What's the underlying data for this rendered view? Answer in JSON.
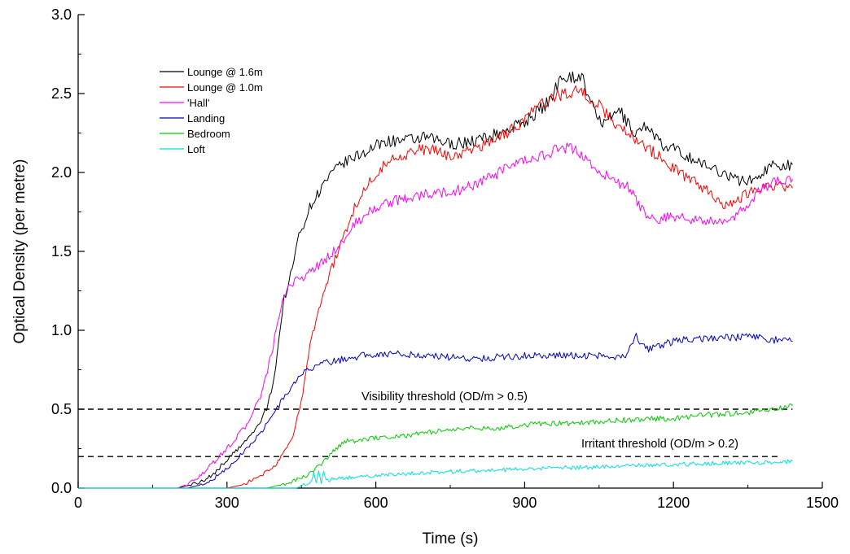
{
  "chart_data": {
    "type": "line",
    "xlabel": "Time (s)",
    "ylabel": "Optical Density (per metre)",
    "xlim": [
      0,
      1500
    ],
    "ylim": [
      0,
      3.0
    ],
    "x_ticks": [
      "0",
      "300",
      "600",
      "900",
      "1200",
      "1500"
    ],
    "y_ticks": [
      "0.0",
      "0.5",
      "1.0",
      "1.5",
      "2.0",
      "2.5",
      "3.0"
    ],
    "grid": false,
    "legend_position": "top-left",
    "series": [
      {
        "name": "Lounge @ 1.6m",
        "color": "#000000",
        "x": [
          0,
          200,
          240,
          270,
          300,
          330,
          360,
          380,
          395,
          405,
          415,
          425,
          435,
          445,
          470,
          500,
          530,
          560,
          590,
          620,
          660,
          700,
          750,
          800,
          850,
          900,
          950,
          975,
          1000,
          1015,
          1030,
          1060,
          1090,
          1120,
          1150,
          1180,
          1200,
          1230,
          1260,
          1300,
          1330,
          1360,
          1400,
          1440
        ],
        "y": [
          0,
          0,
          0.03,
          0.08,
          0.18,
          0.27,
          0.38,
          0.5,
          0.7,
          0.95,
          1.2,
          1.3,
          1.45,
          1.6,
          1.8,
          1.95,
          2.05,
          2.1,
          2.15,
          2.2,
          2.2,
          2.22,
          2.18,
          2.2,
          2.25,
          2.32,
          2.45,
          2.62,
          2.6,
          2.62,
          2.45,
          2.3,
          2.4,
          2.25,
          2.3,
          2.15,
          2.15,
          2.1,
          2.05,
          2.0,
          1.95,
          1.95,
          2.05,
          2.05
        ]
      },
      {
        "name": "Lounge @ 1.0m",
        "color": "#ff0000",
        "x": [
          0,
          300,
          330,
          360,
          400,
          430,
          450,
          470,
          500,
          530,
          560,
          600,
          640,
          700,
          760,
          820,
          880,
          920,
          960,
          1000,
          1020,
          1050,
          1080,
          1110,
          1150,
          1180,
          1210,
          1240,
          1270,
          1300,
          1330,
          1360,
          1400,
          1440
        ],
        "y": [
          0,
          0,
          0.02,
          0.06,
          0.15,
          0.3,
          0.55,
          0.95,
          1.3,
          1.55,
          1.8,
          2.0,
          2.1,
          2.15,
          2.1,
          2.18,
          2.28,
          2.4,
          2.48,
          2.52,
          2.5,
          2.42,
          2.32,
          2.25,
          2.15,
          2.08,
          2.0,
          1.95,
          1.88,
          1.8,
          1.82,
          1.9,
          1.92,
          1.9
        ]
      },
      {
        "name": "'Hall'",
        "color": "#ff00ff",
        "x": [
          0,
          200,
          230,
          260,
          300,
          340,
          370,
          390,
          405,
          415,
          430,
          460,
          500,
          530,
          560,
          600,
          650,
          700,
          760,
          820,
          880,
          930,
          970,
          1000,
          1020,
          1050,
          1080,
          1110,
          1130,
          1145,
          1160,
          1200,
          1250,
          1290,
          1320,
          1350,
          1380,
          1410,
          1440
        ],
        "y": [
          0,
          0,
          0.04,
          0.12,
          0.25,
          0.4,
          0.6,
          0.85,
          1.1,
          1.2,
          1.3,
          1.35,
          1.45,
          1.55,
          1.68,
          1.78,
          1.83,
          1.86,
          1.88,
          1.95,
          2.05,
          2.1,
          2.15,
          2.15,
          2.1,
          2.0,
          1.95,
          1.9,
          1.8,
          1.72,
          1.7,
          1.72,
          1.7,
          1.68,
          1.7,
          1.8,
          1.9,
          1.95,
          1.96
        ]
      },
      {
        "name": "Landing",
        "color": "#0000c0",
        "x": [
          0,
          220,
          260,
          300,
          330,
          360,
          390,
          420,
          450,
          480,
          510,
          540,
          570,
          600,
          650,
          700,
          750,
          800,
          850,
          900,
          950,
          1000,
          1050,
          1100,
          1115,
          1125,
          1135,
          1150,
          1200,
          1250,
          1300,
          1350,
          1400,
          1440
        ],
        "y": [
          0,
          0,
          0.03,
          0.12,
          0.22,
          0.32,
          0.45,
          0.6,
          0.72,
          0.78,
          0.8,
          0.82,
          0.84,
          0.85,
          0.85,
          0.84,
          0.83,
          0.82,
          0.83,
          0.84,
          0.84,
          0.84,
          0.84,
          0.83,
          0.9,
          0.96,
          0.9,
          0.88,
          0.93,
          0.95,
          0.95,
          0.96,
          0.94,
          0.93
        ]
      },
      {
        "name": "Bedroom",
        "color": "#00cc00",
        "x": [
          0,
          380,
          420,
          460,
          490,
          520,
          540,
          560,
          600,
          650,
          700,
          750,
          800,
          850,
          900,
          950,
          1000,
          1050,
          1100,
          1150,
          1200,
          1250,
          1300,
          1350,
          1400,
          1440
        ],
        "y": [
          0,
          0,
          0.03,
          0.08,
          0.15,
          0.25,
          0.3,
          0.3,
          0.32,
          0.33,
          0.35,
          0.37,
          0.38,
          0.38,
          0.4,
          0.41,
          0.41,
          0.42,
          0.43,
          0.44,
          0.44,
          0.46,
          0.47,
          0.48,
          0.5,
          0.52
        ]
      },
      {
        "name": "Loft",
        "color": "#00e0e0",
        "x": [
          0,
          440,
          460,
          470,
          475,
          480,
          485,
          490,
          495,
          500,
          550,
          600,
          700,
          800,
          900,
          1000,
          1100,
          1200,
          1300,
          1400,
          1440
        ],
        "y": [
          0,
          0,
          0.03,
          0.04,
          0.09,
          0.04,
          0.1,
          0.04,
          0.1,
          0.05,
          0.07,
          0.08,
          0.1,
          0.11,
          0.12,
          0.13,
          0.14,
          0.15,
          0.16,
          0.16,
          0.17
        ]
      }
    ],
    "reference_lines": [
      {
        "y": 0.5,
        "x_start": 0,
        "x_end": 1440,
        "style": "dashed",
        "label": "Visibility threshold (OD/m  > 0.5)"
      },
      {
        "y": 0.2,
        "x_start": 0,
        "x_end": 1410,
        "style": "dashed",
        "label": "Irritant threshold (OD/m  > 0.2)"
      }
    ]
  }
}
